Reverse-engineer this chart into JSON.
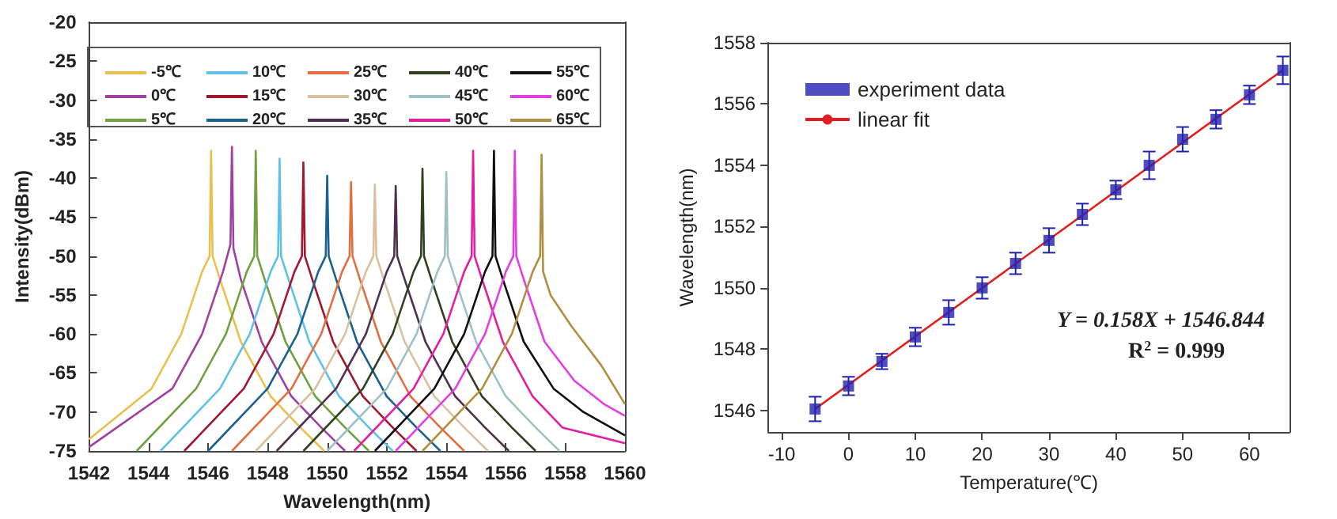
{
  "chart_data": [
    {
      "type": "line",
      "xlabel": "Wavelength(nm)",
      "ylabel": "Intensity(dBm)",
      "xlim": [
        1542,
        1560
      ],
      "ylim": [
        -75,
        -20
      ],
      "xticks": [
        1542,
        1544,
        1546,
        1548,
        1550,
        1552,
        1554,
        1556,
        1558,
        1560
      ],
      "yticks": [
        -75,
        -70,
        -65,
        -60,
        -55,
        -50,
        -45,
        -40,
        -35,
        -30,
        -25,
        -20
      ],
      "legend": "top",
      "marker": "none",
      "grid": false,
      "series": [
        {
          "name": "-5℃",
          "color": "#e8c050",
          "x": [
            1542,
            1544.1,
            1545.1,
            1545.8,
            1546.05,
            1546.1,
            1546.15,
            1546.4,
            1547.1,
            1548.1,
            1549.1,
            1549.9
          ],
          "values": [
            -73.5,
            -67,
            -60,
            -52,
            -50,
            -36.5,
            -50,
            -53,
            -61,
            -68,
            -72,
            -75
          ]
        },
        {
          "name": "0℃",
          "color": "#a040a0",
          "x": [
            1542,
            1544.8,
            1545.8,
            1546.5,
            1546.75,
            1546.8,
            1546.85,
            1547.1,
            1547.8,
            1548.8,
            1549.8,
            1550.6
          ],
          "values": [
            -74.5,
            -67,
            -60,
            -52,
            -48.5,
            -36,
            -49,
            -53,
            -61,
            -68,
            -72,
            -75
          ]
        },
        {
          "name": "5℃",
          "color": "#70a040",
          "x": [
            1543.6,
            1545.6,
            1546.6,
            1547.3,
            1547.55,
            1547.6,
            1547.65,
            1547.9,
            1548.6,
            1549.6,
            1550.6,
            1551.4
          ],
          "values": [
            -75,
            -67,
            -60,
            -52,
            -50,
            -36.5,
            -50,
            -53,
            -61,
            -68,
            -72,
            -75
          ]
        },
        {
          "name": "10℃",
          "color": "#60c0e8",
          "x": [
            1544.4,
            1546.4,
            1547.4,
            1548.1,
            1548.35,
            1548.4,
            1548.45,
            1548.7,
            1549.4,
            1550.4,
            1551.4,
            1552.2
          ],
          "values": [
            -75,
            -67,
            -60,
            -52,
            -50,
            -37.5,
            -50,
            -53,
            -61,
            -68,
            -72,
            -75
          ]
        },
        {
          "name": "15℃",
          "color": "#a01830",
          "x": [
            1545.2,
            1547.2,
            1548.2,
            1548.9,
            1549.15,
            1549.2,
            1549.25,
            1549.5,
            1550.2,
            1551.2,
            1552.2,
            1553
          ],
          "values": [
            -75,
            -67,
            -60,
            -52,
            -50,
            -38,
            -50,
            -53,
            -61,
            -68,
            -72,
            -75
          ]
        },
        {
          "name": "20℃",
          "color": "#1a6090",
          "x": [
            1546,
            1548,
            1549,
            1549.7,
            1549.95,
            1550,
            1550.05,
            1550.3,
            1551,
            1552,
            1553,
            1553.8
          ],
          "values": [
            -75,
            -67,
            -60,
            -52,
            -50,
            -39.7,
            -50,
            -53,
            -61,
            -68,
            -72,
            -75
          ]
        },
        {
          "name": "25℃",
          "color": "#e07040",
          "x": [
            1546.8,
            1548.8,
            1549.8,
            1550.5,
            1550.75,
            1550.8,
            1550.85,
            1551.1,
            1551.8,
            1552.8,
            1553.8,
            1554.6
          ],
          "values": [
            -75,
            -67,
            -60,
            -52,
            -50,
            -40.5,
            -50,
            -53,
            -61,
            -68,
            -72,
            -75
          ]
        },
        {
          "name": "30℃",
          "color": "#d8c0a0",
          "x": [
            1547.6,
            1549.6,
            1550.6,
            1551.3,
            1551.55,
            1551.6,
            1551.65,
            1551.9,
            1552.6,
            1553.6,
            1554.6,
            1555.4
          ],
          "values": [
            -75,
            -67,
            -60,
            -52,
            -50,
            -40.8,
            -50,
            -53,
            -61,
            -68,
            -72,
            -75
          ]
        },
        {
          "name": "35℃",
          "color": "#503050",
          "x": [
            1548.3,
            1550.3,
            1551.3,
            1552,
            1552.25,
            1552.3,
            1552.35,
            1552.6,
            1553.3,
            1554.3,
            1555.3,
            1556.1
          ],
          "values": [
            -75,
            -67,
            -60,
            -52,
            -50,
            -41,
            -50,
            -53,
            -61,
            -68,
            -72,
            -75
          ]
        },
        {
          "name": "40℃",
          "color": "#304020",
          "x": [
            1549.2,
            1551.2,
            1552.2,
            1552.9,
            1553.15,
            1553.2,
            1553.25,
            1553.5,
            1554.2,
            1555.2,
            1556.2,
            1557
          ],
          "values": [
            -75,
            -67,
            -60,
            -52,
            -50,
            -38.8,
            -50,
            -53,
            -61,
            -68,
            -72,
            -75
          ]
        },
        {
          "name": "45℃",
          "color": "#a0c0c8",
          "x": [
            1550,
            1552,
            1553,
            1553.7,
            1553.95,
            1554,
            1554.05,
            1554.3,
            1555,
            1556,
            1557,
            1557.8
          ],
          "values": [
            -75,
            -67,
            -60,
            -52,
            -50,
            -39.2,
            -50,
            -53,
            -61,
            -68,
            -72,
            -75
          ]
        },
        {
          "name": "50℃",
          "color": "#e020a0",
          "x": [
            1550.9,
            1552.9,
            1553.9,
            1554.6,
            1554.85,
            1554.9,
            1554.95,
            1555.2,
            1555.9,
            1556.9,
            1557.9,
            1560
          ],
          "values": [
            -75,
            -67,
            -60,
            -52,
            -50,
            -36.5,
            -50,
            -53,
            -61,
            -68,
            -72,
            -74
          ]
        },
        {
          "name": "55℃",
          "color": "#101010",
          "x": [
            1551.6,
            1553.6,
            1554.6,
            1555.3,
            1555.55,
            1555.6,
            1555.65,
            1555.9,
            1556.6,
            1557.6,
            1558.6,
            1560
          ],
          "values": [
            -75,
            -67,
            -60,
            -52,
            -50,
            -36.5,
            -50,
            -53,
            -61,
            -67,
            -70,
            -73
          ]
        },
        {
          "name": "60℃",
          "color": "#e040e0",
          "x": [
            1552.3,
            1554.3,
            1555.3,
            1556,
            1556.25,
            1556.3,
            1556.35,
            1556.6,
            1557.3,
            1558.3,
            1559.3,
            1560
          ],
          "values": [
            -75,
            -67,
            -60,
            -52,
            -50,
            -36.5,
            -50,
            -53,
            -61,
            -66,
            -69,
            -70.5
          ]
        },
        {
          "name": "65℃",
          "color": "#b09040",
          "x": [
            1553.2,
            1555.2,
            1556.2,
            1556.9,
            1557.15,
            1557.2,
            1557.25,
            1557.5,
            1558.2,
            1559.2,
            1560
          ],
          "values": [
            -75,
            -67,
            -60,
            -52,
            -50,
            -37,
            -52,
            -55,
            -59,
            -64,
            -69
          ]
        }
      ]
    },
    {
      "type": "scatter",
      "xlabel": "Temperature(℃)",
      "ylabel": "Wavelength(nm)",
      "xlim": [
        -12,
        66
      ],
      "ylim": [
        1545.3,
        1558
      ],
      "xticks": [
        -10,
        0,
        10,
        20,
        30,
        40,
        50,
        60
      ],
      "yticks": [
        1546,
        1548,
        1550,
        1552,
        1554,
        1556,
        1558
      ],
      "legend": "top left",
      "grid": false,
      "annotations": [
        "Y = 0.158X + 1546.844",
        "R$^{2}$ = 0.999"
      ],
      "series": [
        {
          "name": "experiment data",
          "marker": "square",
          "color": "#2020b0",
          "x": [
            -5,
            0,
            5,
            10,
            15,
            20,
            25,
            30,
            35,
            40,
            45,
            50,
            55,
            60,
            65
          ],
          "values": [
            1546.05,
            1546.8,
            1547.6,
            1548.4,
            1549.2,
            1550.0,
            1550.8,
            1551.55,
            1552.4,
            1553.2,
            1554.0,
            1554.85,
            1555.5,
            1556.3,
            1557.1
          ],
          "errors": [
            0.4,
            0.3,
            0.25,
            0.3,
            0.4,
            0.35,
            0.35,
            0.4,
            0.35,
            0.3,
            0.45,
            0.4,
            0.3,
            0.3,
            0.45
          ]
        },
        {
          "name": "linear fit",
          "type": "line",
          "marker": "none",
          "color": "#e02020",
          "x": [
            -5,
            65
          ],
          "values": [
            1546.05,
            1557.11
          ]
        }
      ]
    }
  ]
}
